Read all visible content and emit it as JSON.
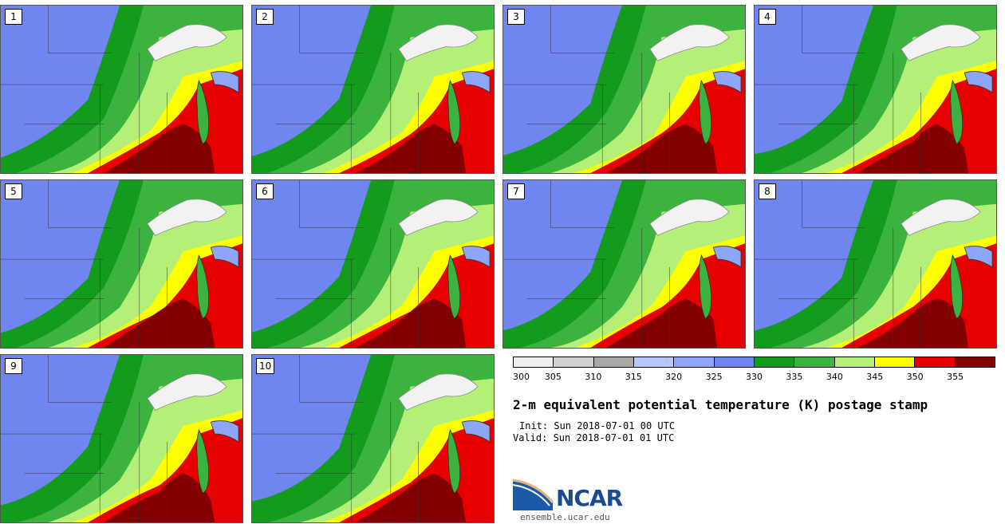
{
  "panels": [
    "1",
    "2",
    "3",
    "4",
    "5",
    "6",
    "7",
    "8",
    "9",
    "10"
  ],
  "colorbar": {
    "ticks": [
      "300",
      "305",
      "310",
      "315",
      "320",
      "325",
      "330",
      "335",
      "340",
      "345",
      "350",
      "355"
    ],
    "colors": [
      "#efefef",
      "#d0d0d0",
      "#a8a8a8",
      "#b8c8ff",
      "#8ea6f7",
      "#6f86f0",
      "#139c1c",
      "#3db33f",
      "#b4f077",
      "#ffff00",
      "#e60000",
      "#820000"
    ]
  },
  "title": "2-m equivalent potential temperature (K) postage stamp",
  "init": "Init: Sun 2018-07-01 00 UTC",
  "valid": "Valid: Sun 2018-07-01 01 UTC",
  "logo": {
    "name": "NCAR",
    "site": "ensemble.ucar.edu"
  }
}
